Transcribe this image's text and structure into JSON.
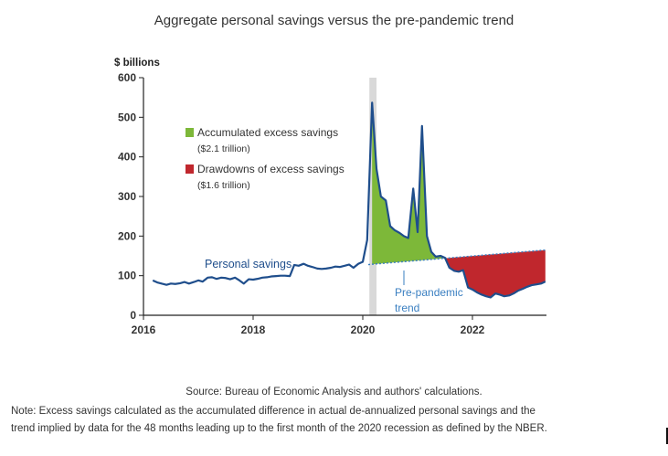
{
  "page": {
    "title": "Aggregate personal savings versus the pre-pandemic trend",
    "source": "Source: Bureau of Economic Analysis and authors' calculations.",
    "note_line1": "Note: Excess savings calculated as the accumulated difference in actual de-annualized personal savings and the",
    "note_line2": "trend implied by data for the 48 months leading up to the first month of the 2020 recession as defined by the NBER."
  },
  "chart_data": {
    "type": "line",
    "ylabel": "$ billions",
    "ylim": [
      0,
      600
    ],
    "yticks": [
      0,
      100,
      200,
      300,
      400,
      500,
      600
    ],
    "xlim": [
      2016.0,
      2023.35
    ],
    "xticks": [
      2016,
      2018,
      2020,
      2022
    ],
    "recession_band": [
      2020.12,
      2020.25
    ],
    "colors": {
      "line": "#1f4e8c",
      "trend": "#3a7fc1",
      "excess": "#7db839",
      "drawdown": "#c0272d",
      "recession": "#d9d9d9"
    },
    "legend": [
      {
        "label": "Accumulated excess savings",
        "sublabel": "($2.1 trillion)",
        "color": "#7db839"
      },
      {
        "label": "Drawdowns of excess savings",
        "sublabel": "($1.6 trillion)",
        "color": "#c0272d"
      }
    ],
    "annotations": {
      "personal_savings": "Personal savings",
      "trend_line1": "Pre-pandemic",
      "trend_line2": "trend"
    },
    "series": [
      {
        "name": "Personal savings",
        "x": [
          2016.17,
          2016.25,
          2016.33,
          2016.42,
          2016.5,
          2016.58,
          2016.67,
          2016.75,
          2016.83,
          2016.92,
          2017.0,
          2017.08,
          2017.17,
          2017.25,
          2017.33,
          2017.42,
          2017.5,
          2017.58,
          2017.67,
          2017.75,
          2017.83,
          2017.92,
          2018.0,
          2018.08,
          2018.17,
          2018.25,
          2018.33,
          2018.42,
          2018.5,
          2018.58,
          2018.67,
          2018.75,
          2018.83,
          2018.92,
          2019.0,
          2019.08,
          2019.17,
          2019.25,
          2019.33,
          2019.42,
          2019.5,
          2019.58,
          2019.67,
          2019.75,
          2019.83,
          2019.92,
          2020.0,
          2020.08,
          2020.17,
          2020.25,
          2020.33,
          2020.42,
          2020.5,
          2020.58,
          2020.67,
          2020.75,
          2020.83,
          2020.92,
          2021.0,
          2021.08,
          2021.17,
          2021.25,
          2021.33,
          2021.42,
          2021.5,
          2021.58,
          2021.67,
          2021.75,
          2021.83,
          2021.92,
          2022.0,
          2022.08,
          2022.17,
          2022.25,
          2022.33,
          2022.42,
          2022.5,
          2022.58,
          2022.67,
          2022.75,
          2022.83,
          2022.92,
          2023.0,
          2023.08,
          2023.17,
          2023.25,
          2023.33
        ],
        "values": [
          88,
          83,
          80,
          77,
          80,
          79,
          81,
          84,
          80,
          84,
          88,
          85,
          95,
          96,
          92,
          95,
          94,
          91,
          95,
          88,
          80,
          91,
          90,
          92,
          95,
          96,
          98,
          99,
          100,
          100,
          99,
          127,
          125,
          130,
          125,
          122,
          118,
          117,
          118,
          120,
          123,
          122,
          125,
          128,
          120,
          130,
          135,
          190,
          537,
          370,
          300,
          290,
          225,
          215,
          208,
          200,
          195,
          320,
          210,
          478,
          200,
          160,
          148,
          150,
          145,
          120,
          112,
          110,
          114,
          70,
          65,
          58,
          52,
          48,
          45,
          55,
          52,
          48,
          50,
          55,
          62,
          67,
          72,
          76,
          78,
          80,
          85
        ]
      },
      {
        "name": "Pre-pandemic trend",
        "x": [
          2020.1,
          2023.35
        ],
        "values": [
          128,
          165
        ]
      }
    ]
  }
}
